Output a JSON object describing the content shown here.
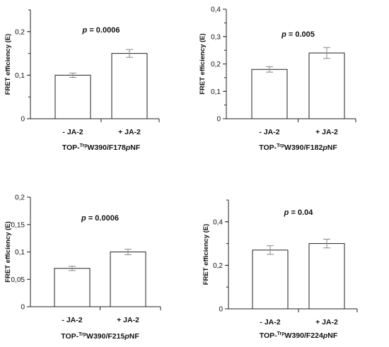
{
  "chart_data": [
    {
      "type": "bar",
      "categories": [
        "- JA-2",
        "+ JA-2"
      ],
      "values": [
        0.1,
        0.15
      ],
      "errors": [
        0.005,
        0.009
      ],
      "ylabel": "FRET efficiency (E)",
      "ylim": [
        0,
        0.25
      ],
      "yticks": [
        "0",
        "0,1",
        "0,2"
      ],
      "yticks_values": [
        0,
        0.1,
        0.2
      ],
      "minor_step": 0.05,
      "annotation": {
        "prefix": "p",
        "text": " = 0.0006"
      },
      "caption": {
        "prefix": "TOP-",
        "sup": "Trp",
        "main": "W390/F178",
        "italic": "p",
        "suffix": "NF"
      }
    },
    {
      "type": "bar",
      "categories": [
        "- JA-2",
        "+ JA-2"
      ],
      "values": [
        0.18,
        0.24
      ],
      "errors": [
        0.01,
        0.02
      ],
      "ylabel": "FRET efficiency (E)",
      "ylim": [
        0,
        0.4
      ],
      "yticks": [
        "0",
        "0,1",
        "0,2",
        "0,3",
        "0,4"
      ],
      "yticks_values": [
        0,
        0.1,
        0.2,
        0.3,
        0.4
      ],
      "minor_step": 0.05,
      "annotation": {
        "prefix": "p",
        "text": " = 0.005"
      },
      "caption": {
        "prefix": "TOP-",
        "sup": "Trp",
        "main": "W390/F182",
        "italic": "p",
        "suffix": "NF"
      }
    },
    {
      "type": "bar",
      "categories": [
        "- JA-2",
        "+ JA-2"
      ],
      "values": [
        0.07,
        0.1
      ],
      "errors": [
        0.004,
        0.005
      ],
      "ylabel": "FRET efficiency (E)",
      "ylim": [
        0,
        0.2
      ],
      "yticks": [
        "0",
        "0,05",
        "0,1",
        "0,15",
        "0,2"
      ],
      "yticks_values": [
        0,
        0.05,
        0.1,
        0.15,
        0.2
      ],
      "minor_step": 0,
      "annotation": {
        "prefix": "p",
        "text": " = 0.0006"
      },
      "caption": {
        "prefix": "TOP-",
        "sup": "Trp",
        "main": "W390/F215",
        "italic": "p",
        "suffix": "NF"
      }
    },
    {
      "type": "bar",
      "categories": [
        "- JA-2",
        "+ JA-2"
      ],
      "values": [
        0.27,
        0.3
      ],
      "errors": [
        0.02,
        0.02
      ],
      "ylabel": "FRET efficiency (E)",
      "ylim": [
        0,
        0.5
      ],
      "yticks": [
        "0",
        "0,2",
        "0,4"
      ],
      "yticks_values": [
        0,
        0.2,
        0.4
      ],
      "minor_step": 0.1,
      "annotation": {
        "prefix": "p",
        "text": " = 0.04"
      },
      "caption": {
        "prefix": "TOP-",
        "sup": "Trp",
        "main": "W390/F224",
        "italic": "p",
        "suffix": "NF"
      }
    }
  ]
}
